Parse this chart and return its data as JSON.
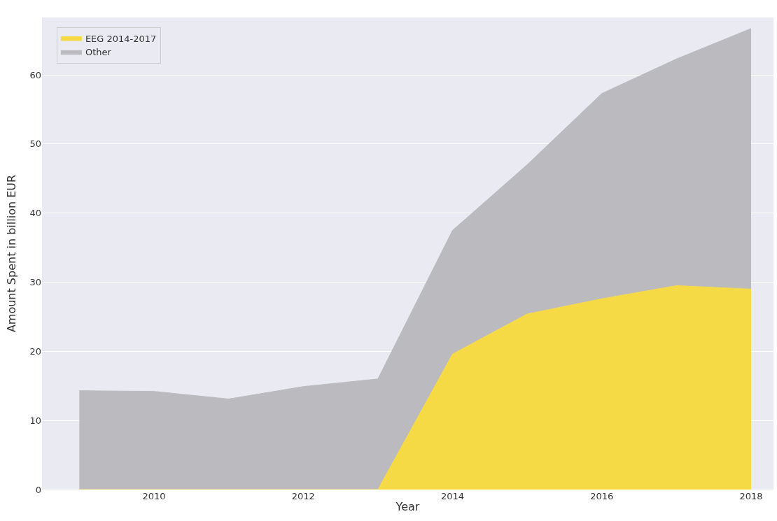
{
  "chart_data": {
    "type": "area",
    "stacked": true,
    "xlabel": "Year",
    "ylabel": "Amount Spent in billion EUR",
    "x": [
      2009,
      2010,
      2011,
      2012,
      2013,
      2014,
      2015,
      2016,
      2017,
      2018
    ],
    "series": [
      {
        "name": "EEG 2014-2017",
        "color": "#f6da45",
        "values": [
          0,
          0,
          0,
          0,
          0,
          19.6,
          25.4,
          27.6,
          29.5,
          29.0
        ]
      },
      {
        "name": "Other",
        "color": "#bbbabf",
        "values": [
          14.3,
          14.2,
          13.1,
          14.9,
          16.0,
          17.9,
          21.6,
          29.7,
          32.8,
          37.7
        ]
      }
    ],
    "xlim": [
      2008.5,
      2018.3
    ],
    "xticks": [
      2010,
      2012,
      2014,
      2016,
      2018
    ],
    "ylim": [
      0,
      68.3
    ],
    "yticks": [
      0,
      10,
      20,
      30,
      40,
      50,
      60
    ],
    "grid": "y",
    "legend": "top left"
  }
}
